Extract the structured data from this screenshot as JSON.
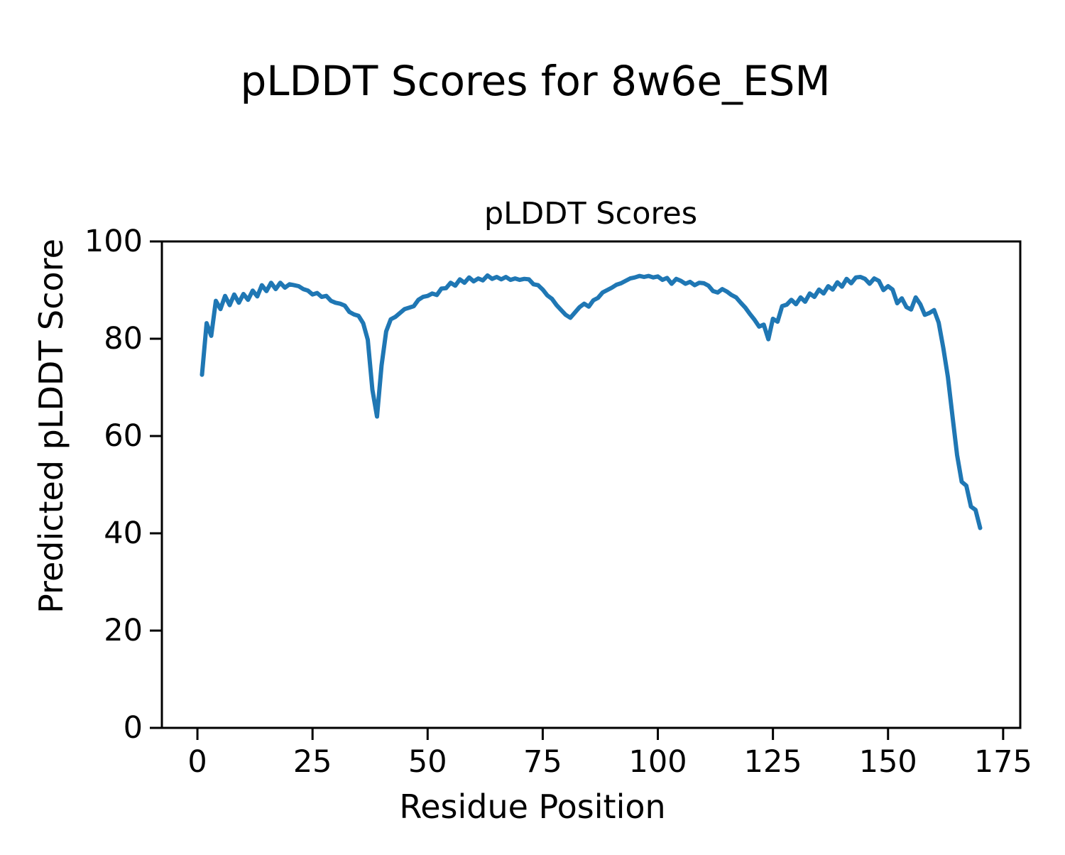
{
  "figure_title": "pLDDT Scores for 8w6e_ESM",
  "chart_data": {
    "type": "line",
    "title": "pLDDT Scores",
    "xlabel": "Residue Position",
    "ylabel": "Predicted pLDDT Score",
    "grid": false,
    "legend": "none",
    "x_ticks": [
      0,
      25,
      50,
      75,
      100,
      125,
      150,
      175
    ],
    "y_ticks": [
      0,
      20,
      40,
      60,
      80,
      100
    ],
    "xlim": [
      -7.72,
      178.72
    ],
    "ylim": [
      0,
      100
    ],
    "line_color": "#1f77b4",
    "series": [
      {
        "name": "pLDDT",
        "color": "#1f77b4",
        "x_start": 1,
        "values": [
          72.6,
          83.2,
          80.6,
          87.8,
          86.1,
          88.8,
          86.9,
          89.1,
          87.4,
          89.2,
          88.0,
          89.9,
          88.7,
          91.0,
          89.8,
          91.5,
          90.2,
          91.5,
          90.5,
          91.2,
          91.0,
          90.8,
          90.2,
          89.9,
          89.1,
          89.4,
          88.6,
          88.8,
          87.8,
          87.4,
          87.2,
          86.8,
          85.5,
          85.0,
          84.7,
          83.2,
          79.8,
          69.5,
          64.0,
          74.5,
          81.5,
          84.0,
          84.5,
          85.3,
          86.1,
          86.4,
          86.7,
          88.0,
          88.6,
          88.8,
          89.3,
          89.0,
          90.3,
          90.4,
          91.5,
          90.9,
          92.2,
          91.5,
          92.6,
          91.8,
          92.4,
          92.0,
          93.0,
          92.3,
          92.7,
          92.2,
          92.7,
          92.1,
          92.4,
          92.1,
          92.3,
          92.2,
          91.2,
          91.0,
          90.1,
          88.9,
          88.2,
          86.9,
          85.9,
          84.9,
          84.3,
          85.4,
          86.5,
          87.2,
          86.6,
          87.9,
          88.4,
          89.5,
          90.0,
          90.5,
          91.1,
          91.4,
          91.9,
          92.4,
          92.6,
          92.9,
          92.7,
          92.9,
          92.6,
          92.8,
          92.1,
          92.5,
          91.3,
          92.3,
          91.9,
          91.3,
          91.7,
          91.0,
          91.5,
          91.4,
          90.9,
          89.8,
          89.5,
          90.2,
          89.7,
          89.0,
          88.5,
          87.4,
          86.4,
          85.1,
          83.9,
          82.5,
          82.9,
          79.9,
          84.1,
          83.5,
          86.7,
          87.0,
          88.0,
          87.1,
          88.5,
          87.6,
          89.3,
          88.6,
          90.1,
          89.3,
          90.8,
          90.1,
          91.6,
          90.7,
          92.3,
          91.4,
          92.6,
          92.7,
          92.3,
          91.3,
          92.4,
          91.9,
          90.0,
          90.8,
          90.1,
          87.3,
          88.3,
          86.5,
          86.0,
          88.5,
          87.1,
          84.9,
          85.3,
          85.9,
          83.3,
          78.1,
          72.1,
          64.1,
          56.1,
          50.6,
          49.8,
          45.5,
          44.8,
          41.1
        ]
      }
    ]
  }
}
